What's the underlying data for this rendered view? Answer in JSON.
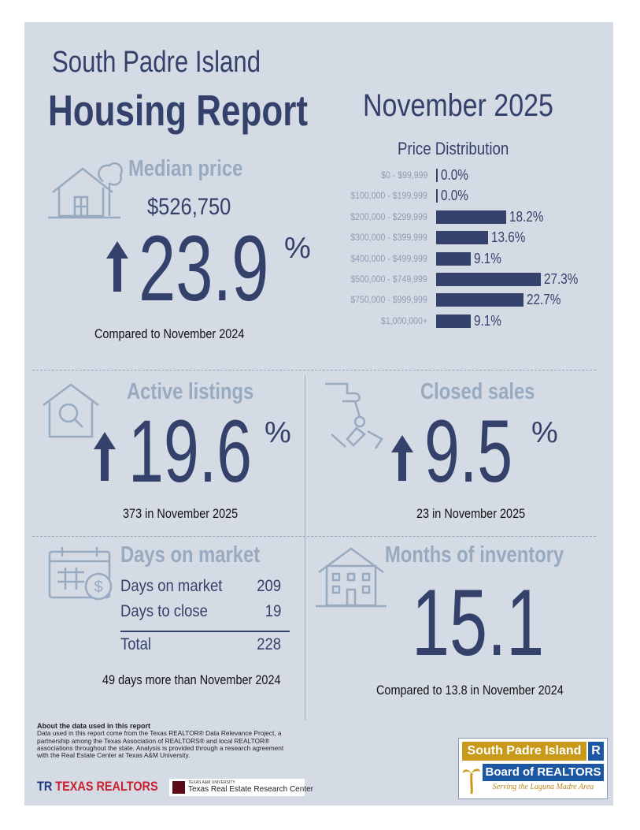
{
  "header": {
    "city": "South Padre Island",
    "report": "Housing Report",
    "month": "November 2025"
  },
  "median_price": {
    "title": "Median price",
    "value": "$526,750",
    "change": "23.9",
    "unit": "%",
    "caption": "Compared to November 2024",
    "direction": "up"
  },
  "price_distribution": {
    "title": "Price Distribution",
    "items": [
      {
        "label": "$0 - $99,999",
        "value": "0.0%"
      },
      {
        "label": "$100,000 - $199,999",
        "value": "0.0%"
      },
      {
        "label": "$200,000 - $299,999",
        "value": "18.2%"
      },
      {
        "label": "$300,000 - $399,999",
        "value": "13.6%"
      },
      {
        "label": "$400,000 - $499,999",
        "value": "9.1%"
      },
      {
        "label": "$500,000 - $749,999",
        "value": "27.3%"
      },
      {
        "label": "$750,000 - $999,999",
        "value": "22.7%"
      },
      {
        "label": "$1,000,000+",
        "value": "9.1%"
      }
    ]
  },
  "chart_data": {
    "type": "bar",
    "title": "Price Distribution",
    "categories": [
      "$0 - $99,999",
      "$100,000 - $199,999",
      "$200,000 - $299,999",
      "$300,000 - $399,999",
      "$400,000 - $499,999",
      "$500,000 - $749,999",
      "$750,000 - $999,999",
      "$1,000,000+"
    ],
    "values": [
      0.0,
      0.0,
      18.2,
      13.6,
      9.1,
      27.3,
      22.7,
      9.1
    ],
    "xlabel": "",
    "ylabel": "",
    "orientation": "horizontal",
    "unit": "%"
  },
  "active_listings": {
    "title": "Active listings",
    "change": "19.6",
    "unit": "%",
    "caption": "373 in November 2025",
    "direction": "up"
  },
  "closed_sales": {
    "title": "Closed sales",
    "change": "9.5",
    "unit": "%",
    "caption": "23 in November 2025",
    "direction": "up"
  },
  "days_on_market": {
    "title": "Days on market",
    "rows": [
      {
        "label": "Days on market",
        "value": "209"
      },
      {
        "label": "Days to close",
        "value": "19"
      }
    ],
    "total_label": "Total",
    "total_value": "228",
    "caption": "49 days more than November 2024"
  },
  "months_inventory": {
    "title": "Months of inventory",
    "value": "15.1",
    "caption": "Compared to 13.8 in November 2024"
  },
  "about": {
    "heading": "About the data used in this report",
    "text": "Data used in this report come from the Texas REALTOR® Data Relevance Project, a partnership among the Texas Association of REALTORS® and local REALTOR® associations throughout the state. Analysis is provided through a research agreement with the Real Estate Center at Texas A&M University."
  },
  "logos": {
    "texas_realtors": "TEXAS REALTORS",
    "tamu_small": "TEXAS A&M UNIVERSITY",
    "tamu_center": "Texas Real Estate Research Center",
    "spi_line1": "South Padre Island",
    "spi_r": "R",
    "spi_line2": "Board of REALTORS",
    "spi_line3": "Serving the Laguna Madre Area"
  },
  "colors": {
    "navy": "#34416a",
    "steel": "#98aac0",
    "panel": "#d5dbe5"
  }
}
